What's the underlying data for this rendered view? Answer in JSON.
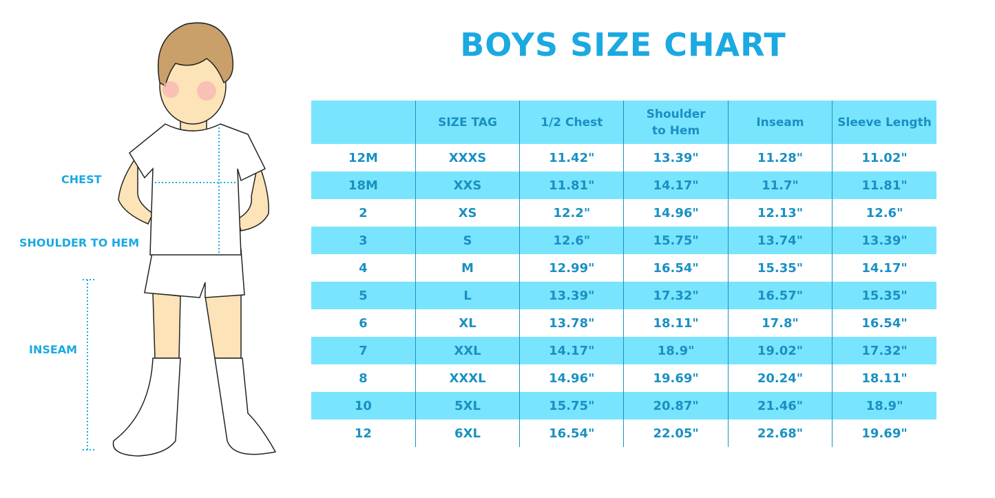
{
  "title": "BOYS SIZE CHART",
  "labels": {
    "chest": "CHEST",
    "shoulder_to_hem": "SHOULDER TO HEM",
    "inseam": "INSEAM"
  },
  "colors": {
    "accent": "#1ba9e1",
    "stripe": "#79e4fd",
    "text": "#1990c2"
  },
  "chart_data": {
    "type": "table",
    "columns": [
      "",
      "SIZE TAG",
      "1/2 Chest",
      "Shoulder to Hem",
      "Inseam",
      "Sleeve Length"
    ],
    "rows": [
      [
        "12M",
        "XXXS",
        "11.42\"",
        "13.39\"",
        "11.28\"",
        "11.02\""
      ],
      [
        "18M",
        "XXS",
        "11.81\"",
        "14.17\"",
        "11.7\"",
        "11.81\""
      ],
      [
        "2",
        "XS",
        "12.2\"",
        "14.96\"",
        "12.13\"",
        "12.6\""
      ],
      [
        "3",
        "S",
        "12.6\"",
        "15.75\"",
        "13.74\"",
        "13.39\""
      ],
      [
        "4",
        "M",
        "12.99\"",
        "16.54\"",
        "15.35\"",
        "14.17\""
      ],
      [
        "5",
        "L",
        "13.39\"",
        "17.32\"",
        "16.57\"",
        "15.35\""
      ],
      [
        "6",
        "XL",
        "13.78\"",
        "18.11\"",
        "17.8\"",
        "16.54\""
      ],
      [
        "7",
        "XXL",
        "14.17\"",
        "18.9\"",
        "19.02\"",
        "17.32\""
      ],
      [
        "8",
        "XXXL",
        "14.96\"",
        "19.69\"",
        "20.24\"",
        "18.11\""
      ],
      [
        "10",
        "5XL",
        "15.75\"",
        "20.87\"",
        "21.46\"",
        "18.9\""
      ],
      [
        "12",
        "6XL",
        "16.54\"",
        "22.05\"",
        "22.68\"",
        "19.69\""
      ]
    ]
  }
}
